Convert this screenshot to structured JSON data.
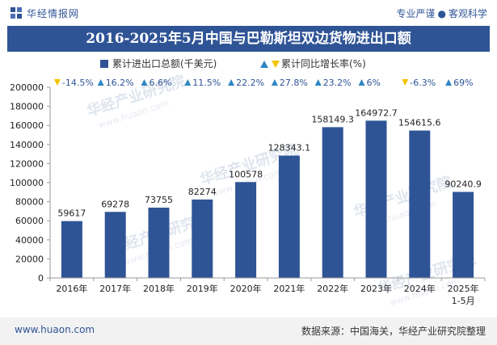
{
  "header": {
    "brand": "华经情报网",
    "tagline_left": "专业严谨",
    "tagline_right": "客观科学"
  },
  "title": "2016-2025年5月中国与巴勒斯坦双边货物进出口额",
  "watermark": "华经产业研究院",
  "watermark_url": "www.huaon.com",
  "colors": {
    "bar": "#2f5496",
    "title_bg": "#2f5496",
    "up": "#2e86c1",
    "down": "#f5c200",
    "brand": "#2f5496"
  },
  "chart_data": {
    "type": "bar",
    "categories": [
      "2016年",
      "2017年",
      "2018年",
      "2019年",
      "2020年",
      "2021年",
      "2022年",
      "2023年",
      "2024年",
      "2025年\n1-5月"
    ],
    "series": [
      {
        "name": "累计进出口总额(千美元)",
        "values": [
          59617,
          69278,
          73755,
          82274,
          100578,
          128343.1,
          158149.3,
          164972.7,
          154615.6,
          90240.9
        ],
        "labels": [
          "59617",
          "69278",
          "73755",
          "82274",
          "100578",
          "128343.1",
          "158149.3",
          "164972.7",
          "154615.6",
          "90240.9"
        ]
      },
      {
        "name": "累计同比增长率(%)",
        "values": [
          -14.5,
          16.2,
          6.6,
          11.5,
          22.2,
          27.8,
          23.2,
          6,
          -6.3,
          69
        ],
        "labels": [
          "-14.5%",
          "16.2%",
          "6.6%",
          "11.5%",
          "22.2%",
          "27.8%",
          "23.2%",
          "6%",
          "-6.3%",
          "69%"
        ]
      }
    ],
    "ylim": [
      0,
      200000
    ],
    "yticks": [
      "0",
      "20000",
      "40000",
      "60000",
      "80000",
      "100000",
      "120000",
      "140000",
      "160000",
      "180000",
      "200000"
    ],
    "legend_position": "top-center",
    "grid": false
  },
  "footer": {
    "site": "www.huaon.com",
    "source": "数据来源：中国海关，华经产业研究院整理"
  }
}
